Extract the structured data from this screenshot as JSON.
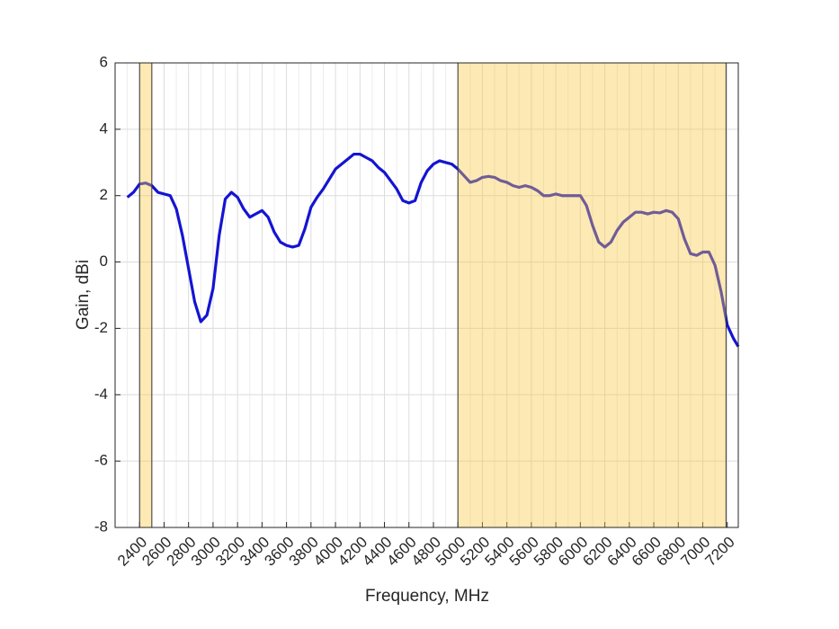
{
  "chart_data": {
    "type": "line",
    "xlabel": "Frequency, MHz",
    "ylabel": "Gain, dBi",
    "xlim": [
      2200,
      7290
    ],
    "ylim": [
      -8,
      6
    ],
    "xticks": [
      2400,
      2600,
      2800,
      3000,
      3200,
      3400,
      3600,
      3800,
      4000,
      4200,
      4400,
      4600,
      4800,
      5000,
      5200,
      5400,
      5600,
      5800,
      6000,
      6200,
      6400,
      6600,
      6800,
      7000,
      7200
    ],
    "yticks": [
      -8,
      -6,
      -4,
      -2,
      0,
      2,
      4,
      6
    ],
    "grid": true,
    "minor_grid": true,
    "bands": [
      [
        2400,
        2500
      ],
      [
        5000,
        7190
      ]
    ],
    "band_color": "#f9c740",
    "x": [
      2300,
      2350,
      2400,
      2450,
      2500,
      2550,
      2600,
      2650,
      2700,
      2750,
      2800,
      2850,
      2900,
      2950,
      3000,
      3050,
      3100,
      3150,
      3200,
      3250,
      3300,
      3350,
      3400,
      3450,
      3500,
      3550,
      3600,
      3650,
      3700,
      3750,
      3800,
      3850,
      3900,
      3950,
      4000,
      4050,
      4100,
      4150,
      4200,
      4250,
      4300,
      4350,
      4400,
      4450,
      4500,
      4550,
      4600,
      4650,
      4700,
      4750,
      4800,
      4850,
      4900,
      4950,
      5000,
      5050,
      5100,
      5150,
      5200,
      5250,
      5300,
      5350,
      5400,
      5450,
      5500,
      5550,
      5600,
      5650,
      5700,
      5750,
      5800,
      5850,
      5900,
      5950,
      6000,
      6050,
      6100,
      6150,
      6200,
      6250,
      6300,
      6350,
      6400,
      6450,
      6500,
      6550,
      6600,
      6650,
      6700,
      6750,
      6800,
      6850,
      6900,
      6950,
      7000,
      7050,
      7100,
      7150,
      7200,
      7250,
      7290
    ],
    "series": [
      {
        "color": "#1414d2",
        "values": [
          1.95,
          2.1,
          2.35,
          2.38,
          2.3,
          2.1,
          2.05,
          2.0,
          1.6,
          0.8,
          -0.2,
          -1.2,
          -1.8,
          -1.6,
          -0.8,
          0.8,
          1.9,
          2.1,
          1.95,
          1.6,
          1.35,
          1.45,
          1.55,
          1.35,
          0.9,
          0.6,
          0.5,
          0.45,
          0.5,
          1.0,
          1.65,
          1.95,
          2.2,
          2.5,
          2.8,
          2.95,
          3.1,
          3.25,
          3.25,
          3.15,
          3.05,
          2.85,
          2.7,
          2.45,
          2.2,
          1.85,
          1.78,
          1.85,
          2.4,
          2.75,
          2.95,
          3.05,
          3.0,
          2.95,
          2.8,
          2.6,
          2.4,
          2.45,
          2.55,
          2.58,
          2.55,
          2.45,
          2.4,
          2.3,
          2.25,
          2.3,
          2.25,
          2.15,
          2.0,
          2.0,
          2.05,
          2.0,
          2.0,
          2.0,
          2.0,
          1.7,
          1.1,
          0.6,
          0.45,
          0.6,
          0.95,
          1.2,
          1.35,
          1.5,
          1.5,
          1.45,
          1.5,
          1.48,
          1.55,
          1.5,
          1.3,
          0.7,
          0.25,
          0.2,
          0.3,
          0.3,
          -0.1,
          -0.9,
          -1.9,
          -2.3,
          -2.55
        ]
      }
    ]
  }
}
